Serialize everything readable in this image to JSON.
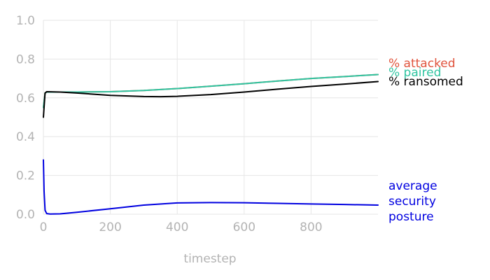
{
  "chart_data": {
    "type": "line",
    "xlabel": "timestep",
    "ylabel": "",
    "xlim": [
      0,
      1000
    ],
    "ylim": [
      0,
      1
    ],
    "x_ticks": [
      0,
      200,
      400,
      600,
      800
    ],
    "y_ticks": [
      0.0,
      0.2,
      0.4,
      0.6,
      0.8,
      1.0
    ],
    "y_tick_labels": [
      "0.0",
      "0.2",
      "0.4",
      "0.6",
      "0.8",
      "1.0"
    ],
    "grid": true,
    "legend": "right, labels at series ends",
    "series": [
      {
        "name": "% attacked",
        "color": "#e0533c",
        "points": [
          [
            0,
            0.55
          ],
          [
            5,
            0.625
          ],
          [
            10,
            0.63
          ],
          [
            50,
            0.63
          ],
          [
            100,
            0.63
          ],
          [
            200,
            0.632
          ],
          [
            300,
            0.638
          ],
          [
            400,
            0.648
          ],
          [
            500,
            0.66
          ],
          [
            600,
            0.673
          ],
          [
            700,
            0.687
          ],
          [
            800,
            0.7
          ],
          [
            900,
            0.71
          ],
          [
            1000,
            0.72
          ]
        ]
      },
      {
        "name": "% paired",
        "color": "#2ec4a0",
        "points": [
          [
            0,
            0.55
          ],
          [
            5,
            0.625
          ],
          [
            10,
            0.63
          ],
          [
            50,
            0.63
          ],
          [
            100,
            0.63
          ],
          [
            200,
            0.632
          ],
          [
            300,
            0.638
          ],
          [
            400,
            0.648
          ],
          [
            500,
            0.66
          ],
          [
            600,
            0.673
          ],
          [
            700,
            0.687
          ],
          [
            800,
            0.7
          ],
          [
            900,
            0.71
          ],
          [
            1000,
            0.72
          ]
        ]
      },
      {
        "name": "% ransomed",
        "color": "#000000",
        "points": [
          [
            0,
            0.5
          ],
          [
            5,
            0.625
          ],
          [
            10,
            0.632
          ],
          [
            50,
            0.63
          ],
          [
            100,
            0.625
          ],
          [
            200,
            0.613
          ],
          [
            300,
            0.607
          ],
          [
            350,
            0.606
          ],
          [
            400,
            0.608
          ],
          [
            500,
            0.617
          ],
          [
            600,
            0.63
          ],
          [
            700,
            0.645
          ],
          [
            800,
            0.659
          ],
          [
            900,
            0.671
          ],
          [
            1000,
            0.684
          ]
        ]
      },
      {
        "name": "average\nsecurity\nposture",
        "color": "#0000e0",
        "points": [
          [
            0,
            0.28
          ],
          [
            2,
            0.12
          ],
          [
            5,
            0.02
          ],
          [
            10,
            0.003
          ],
          [
            20,
            0.001
          ],
          [
            50,
            0.002
          ],
          [
            100,
            0.01
          ],
          [
            200,
            0.028
          ],
          [
            300,
            0.047
          ],
          [
            400,
            0.058
          ],
          [
            500,
            0.06
          ],
          [
            600,
            0.059
          ],
          [
            700,
            0.056
          ],
          [
            800,
            0.053
          ],
          [
            900,
            0.05
          ],
          [
            1000,
            0.047
          ]
        ]
      }
    ]
  }
}
